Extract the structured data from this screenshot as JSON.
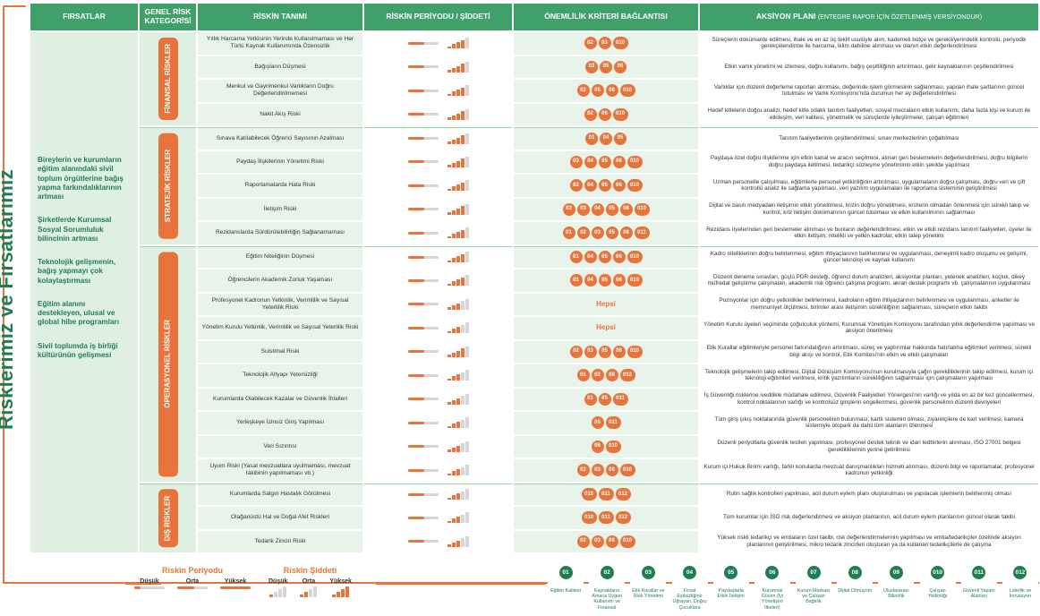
{
  "side_title": "Risklerimiz ve Fırsatlarımız",
  "headers": {
    "firsatlar": "FIRSATLAR",
    "kategori": "GENEL RİSK KATEGORİSİ",
    "tanim": "RİSKİN TANIMI",
    "periyot": "RİSKİN PERİYODU / ŞİDDETİ",
    "kriter": "ÖNEMLİLİK KRİTERİ BAĞLANTISI",
    "aksiyon": "AKSİYON PLANI",
    "aksiyon_sub": "(ENTEGRE RAPOR İÇİN ÖZETLENMİŞ VERSİYONDUR)"
  },
  "opportunities": [
    "Bireylerin ve kurumların eğitim alanındaki sivil toplum örgütlerine bağış yapma farkındalıklarının artması",
    "Şirketlerde Kurumsal Sosyal Sorumluluk bilincinin artması",
    "Teknolojik gelişmenin, bağış yapmayı çok kolaylaştırması",
    "Eğitim alanını destekleyen, ulusal ve global hibe programları",
    "Sivil toplumda iş birliği kültürünün gelişmesi"
  ],
  "categories": [
    "FİNANSAL RİSKLER",
    "STRATEJİK RİSKLER",
    "OPERASYONEL RİSKLER",
    "DIŞ RİSKLER"
  ],
  "rows": [
    {
      "cat": 0,
      "risk": "Yıllık Harcama Yetkisinin Yerinde Kullanılmaması ve Her Türlü Kaynak Kullanımında Özensizlik",
      "period": 0.55,
      "severity": 4,
      "badges": [
        "02",
        "03",
        "010"
      ],
      "action": "Süreçlerin dokümante edilmesi, ihale ve en az üç teklif usulüyle alım, kademeli bütçe ve gerekli/yerindelik kontrolü, periyodik gerekçelendirme ile harcama, iklim dahiline alınması ve olanın etkin değerlendirilmesi"
    },
    {
      "cat": 0,
      "risk": "Bağışların Düşmesi",
      "period": 0.55,
      "severity": 4,
      "badges": [
        "02",
        "05",
        "06"
      ],
      "action": "Etkin varlık yönetimi ve izlemesi, doğru kullanımı, bağış çeşitliliğinin artırılması, gelir kaynaklarının çeşitlendirilmesi"
    },
    {
      "cat": 0,
      "risk": "Menkul ve Gayrimenkul Varlıkların Doğru Değerlendirilmemesi",
      "period": 0.55,
      "severity": 4,
      "badges": [
        "02",
        "05",
        "06",
        "010"
      ],
      "action": "Varlıklar için düzenli değerleme raporları alınması, değerinde işlem görmesinin sağlanması, yapılan ihale şartlarının güncel tutulması ve Varlık Komisyonu'nda durumun her ay değerlendirilmesi"
    },
    {
      "cat": 0,
      "risk": "Nakit Akış Riski",
      "period": 0.55,
      "severity": 4,
      "badges": [
        "02",
        "06",
        "010"
      ],
      "action": "Hedef kitlelerin doğru analizi, hedef kitle odaklı tanıtım faaliyetleri, sosyal mecraların etkin kullanımı, daha fazla kişi ve kurum ile etkileşim, veri kalitesi, yönetmelik ve süreçlerde iyileştirmeler, çalışan eğitimleri"
    },
    {
      "cat": 1,
      "risk": "Sınava Katılabilecek Öğrenci Sayısının Azalması",
      "period": 0.55,
      "severity": 4,
      "badges": [
        "01",
        "04",
        "05"
      ],
      "action": "Tanıtım faaliyetlerinin çeşitlendirilmesi, sınav merkezlerinin çoğaltılması"
    },
    {
      "cat": 1,
      "risk": "Paydaş İlişkilerinin Yönetimi Riski",
      "period": 0.55,
      "severity": 4,
      "badges": [
        "03",
        "04",
        "05",
        "06",
        "010"
      ],
      "action": "Paydaşa özel doğru ilişkilenme için etkin kanal ve aracın seçilmesi, alınan geri beslemelerin değerlendirilmesi, doğru bilgilerin doğru paydaşa iletilmesi, tedarikçi sözleşme yönetiminin etkin şekilde yapılması"
    },
    {
      "cat": 1,
      "risk": "Raporlamalarda Hata Riski",
      "period": 0.55,
      "severity": 4,
      "badges": [
        "02",
        "04",
        "05",
        "06",
        "010"
      ],
      "action": "Uzman personelle çalışılması, eğitimlerle personel yetkinliğinin artırılması, uygulamaların doğru çalışması, doğru veri ve çift kontrollü analiz ile sağlama yapılması, veri yazılım uygulamaları ile raporlama sisteminin geliştirilmesi"
    },
    {
      "cat": 1,
      "risk": "İletişim Riski",
      "period": 0.55,
      "severity": 4,
      "badges": [
        "02",
        "03",
        "04",
        "05",
        "06",
        "010"
      ],
      "action": "Dijital ve basılı medyadaki iletişimin etkin yönetilmesi, krizin doğru yönetilmesi, krizlerin olmadan önlenmesi için sürekli takip ve kontrol, kriz iletişim dokümanının güncel tutulması ve etkin kullanılmının sağlanması"
    },
    {
      "cat": 1,
      "risk": "Rezidanslarda Sürdürülebilirliğin Sağlanamaması",
      "period": 0.55,
      "severity": 4,
      "badges": [
        "01",
        "02",
        "03",
        "05",
        "06",
        "011"
      ],
      "action": "Rezidans üyelerinden geri beslemeler alınması ve bunların değerlendirilmesi, etkin ve etkili rezidans tanıtım faaliyetleri, üyeler ile etkin iletişim, nitelikli ve yetkin kadrolar, etkin talep yönetimi"
    },
    {
      "cat": 2,
      "risk": "Eğitim Niteliğinin Düşmesi",
      "period": 0.55,
      "severity": 4,
      "badges": [
        "01",
        "04",
        "05",
        "06",
        "010"
      ],
      "action": "Kadro niteliklerinin doğru belirlenmesi, eğitim ihtiyaçlarının belirlenmesi ve uygulanması, deneyimli kadro oluşumu ve gelişimi, güncel teknoloji ve kaynak kullanımı"
    },
    {
      "cat": 2,
      "risk": "Öğrencilerin Akademik Zorluk Yaşaması",
      "period": 0.55,
      "severity": 4,
      "badges": [
        "01",
        "04",
        "05",
        "06",
        "010"
      ],
      "action": "Düzenli deneme sınavları, güçlü PDR desteği, öğrenci durum analizleri, aksiyonlar planları, yetenek analizleri, koçluk, dikey müfredat geliştirme çalışmaları, akademik risk öğrenci çalışma programı, akran destek programı vb. çalışmalarının uygulanması"
    },
    {
      "cat": 2,
      "risk": "Profesyonel Kadronun Yetkinlik, Verimlilik ve Sayısal Yeterlilik Riski",
      "period": 0.55,
      "severity": 3,
      "hepsi": "Hepsi",
      "action": "Pozisyonlar için doğru yetkinlikler belirlenmesi, kadroların eğitim ihtiyaçlarının belirlenmesi ve uygulanması, anketler ile memnuniyet ölçülmesi, birimler arası iletişimin sürekliliğinin sağlanması, süreçlerin etkin takibi"
    },
    {
      "cat": 2,
      "risk": "Yönetim Kurulu Yetkinlik, Verimlilik ve Sayısal Yeterlilik Riski",
      "period": 0.55,
      "severity": 3,
      "hepsi": "Hepsi",
      "action": "Yönetim Kurulu üyeleri seçiminde çoğulculuk yöntemi, Kurumsal Yönetişim Komisyonu tarafından yıllık değerlendirme yapılması ve aksiyon önerilmesi"
    },
    {
      "cat": 2,
      "risk": "Suistimal Riski",
      "period": 0.55,
      "severity": 4,
      "badges": [
        "02",
        "03",
        "05",
        "06",
        "010"
      ],
      "action": "Etik Kurallar eğitimleriyle personel farkındalığının artırılması, süreç ve yaptırımlar hakkında hatırlatma eğitimleri verilmesi, sürekli bilgi akışı ve kontrol, Etik Komitesi'nin etkin ve etkili çalışmaları"
    },
    {
      "cat": 2,
      "risk": "Teknolojik Altyapı Yetersizliği",
      "period": 0.55,
      "severity": 3,
      "badges": [
        "01",
        "02",
        "08",
        "012"
      ],
      "action": "Teknolojik gelişmelerin takip edilmesi, Dijital Dönüşüm Komisyonu'nun kurulmasıyla çağın gerekliliklerinin takip edilmesi, kurum içi teknoloji eğitimleri verilmesi, kritik yazılımların sürekliliğinin sağlanması için çalışmaların yapılması"
    },
    {
      "cat": 2,
      "risk": "Kurumlarda Olabilecek Kazalar ve Güvenlik İhlalleri",
      "period": 0.55,
      "severity": 3,
      "badges": [
        "01",
        "05",
        "011"
      ],
      "action": "İş Güvenliği risklerine ivedilikle müdahale edilmesi, Güvenlik Faaliyetleri Yönergesi'nin varlığı ve yılda en az bir kez güncellenmesi, kontrol noktalarının varlığı ve kontrolsüz girişlerin engellenmesi, güvenlik personelinin düzenli devriyeleri"
    },
    {
      "cat": 2,
      "risk": "Yerleşkeye İzinsiz Giriş Yapılması",
      "period": 0.55,
      "severity": 3,
      "badges": [
        "05",
        "011"
      ],
      "action": "Tüm giriş çıkış noktalarında güvenlik personelinin bulunması, kartlı sistemin olması, ziyaretçilere de kart verilmesi, kamera sistemiyle otopark da dahil tüm alanların izlenmesi"
    },
    {
      "cat": 2,
      "risk": "Veri Sızıntısı",
      "period": 0.55,
      "severity": 3,
      "badges": [
        "06",
        "010"
      ],
      "action": "Düzenli periyotlarla güvenlik testleri yapılması, profesyonel destek teknik ve idari tedbirlerin alınması, ISO 27001 belgesi gerekliliklerinin yerine getirilmesi"
    },
    {
      "cat": 2,
      "risk": "Uyum Riski (Yasal mevzuatlara uyulmaması, mevzuat takibinin yapılmaması vb.)",
      "period": 0.55,
      "severity": 3,
      "badges": [
        "02",
        "03",
        "06",
        "010"
      ],
      "action": "Kurum içi Hukuk Birimi varlığı, farklı konularda mevzuat danışmanlıkları hizmeti alınması, düzenli bilgi ve raporlamalar, profesyonel kadronun yetkinliği"
    },
    {
      "cat": 3,
      "risk": "Kurumlarda Salgın Hastalık Görülmesi",
      "period": 0.55,
      "severity": 3,
      "badges": [
        "010",
        "011",
        "012"
      ],
      "action": "Rutin sağlık kontrolleri yapılması, acil durum eylem planı oluşturulması ve yapılacak işlemlerin belirlenmiş olması"
    },
    {
      "cat": 3,
      "risk": "Olağanüstü Hal ve Doğal Afet Riskleri",
      "period": 0.55,
      "severity": 3,
      "badges": [
        "010",
        "011",
        "012"
      ],
      "action": "Tüm kurumlar için İSG risk değerlendirmesi ve aksiyon planlarının, acil durum eylem planlarının güncel olarak takibi"
    },
    {
      "cat": 3,
      "risk": "Tedarik Zinciri Riski",
      "period": 0.55,
      "severity": 3,
      "badges": [
        "02",
        "03",
        "06",
        "010"
      ],
      "action": "Yüksek riskli tedarikçi ve emtiaların özel takibi, risk değerlendirmelerinin yapılması ve emtia/tedarikçiler özelinde aksiyon planlarının geliştirilmesi, mikro tedarik zincirleri oluşturan ya da kullanan tedarikçilerle de çalışma"
    }
  ],
  "legend": {
    "period_title": "Riskin Periyodu",
    "severity_title": "Riskin Şiddeti",
    "low": "Düşük",
    "mid": "Orta",
    "high": "Yüksek"
  },
  "criteria": [
    {
      "n": "01",
      "label": "Eğitim Kalitesi"
    },
    {
      "n": "02",
      "label": "Kaynakların Amaca Uygun Kullanımı ve Finansal"
    },
    {
      "n": "03",
      "label": "Etik Kurallar ve Risk Yönetimi"
    },
    {
      "n": "04",
      "label": "Fırsat Eşitsizliğine Uğrayan, Doğru Çocuklara"
    },
    {
      "n": "05",
      "label": "Paydaşlarla Etkin İletişim"
    },
    {
      "n": "06",
      "label": "Kurumsal Güven (İyi Yönetişim İlkeleri)"
    },
    {
      "n": "07",
      "label": "Kurum Markası ve Çalışan Bağlılık"
    },
    {
      "n": "08",
      "label": "Dijital Dönüşüm"
    },
    {
      "n": "09",
      "label": "Uluslararası Bilinirlik"
    },
    {
      "n": "010",
      "label": "Çalışan Yetkinliği"
    },
    {
      "n": "011",
      "label": "Güvenli Yaşam Alanları"
    },
    {
      "n": "012",
      "label": "Liderlik ve İnovasyon"
    }
  ]
}
